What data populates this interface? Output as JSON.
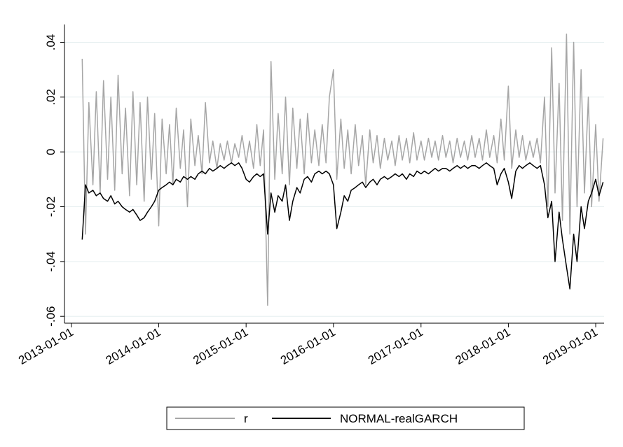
{
  "chart_data": {
    "type": "line",
    "x": [
      "2013-02-15",
      "2013-03-01",
      "2013-03-15",
      "2013-04-01",
      "2013-04-15",
      "2013-05-01",
      "2013-05-15",
      "2013-06-01",
      "2013-06-15",
      "2013-07-01",
      "2013-07-15",
      "2013-08-01",
      "2013-08-15",
      "2013-09-01",
      "2013-09-15",
      "2013-10-01",
      "2013-10-15",
      "2013-11-01",
      "2013-11-15",
      "2013-12-01",
      "2013-12-15",
      "2014-01-01",
      "2014-01-15",
      "2014-02-01",
      "2014-02-15",
      "2014-03-01",
      "2014-03-15",
      "2014-04-01",
      "2014-04-15",
      "2014-05-01",
      "2014-05-15",
      "2014-06-01",
      "2014-06-15",
      "2014-07-01",
      "2014-07-15",
      "2014-08-01",
      "2014-08-15",
      "2014-09-01",
      "2014-09-15",
      "2014-10-01",
      "2014-10-15",
      "2014-11-01",
      "2014-11-15",
      "2014-12-01",
      "2014-12-15",
      "2015-01-01",
      "2015-01-15",
      "2015-02-01",
      "2015-02-15",
      "2015-03-01",
      "2015-03-15",
      "2015-04-01",
      "2015-04-15",
      "2015-05-01",
      "2015-05-15",
      "2015-06-01",
      "2015-06-15",
      "2015-07-01",
      "2015-07-15",
      "2015-08-01",
      "2015-08-15",
      "2015-09-01",
      "2015-09-15",
      "2015-10-01",
      "2015-10-15",
      "2015-11-01",
      "2015-11-15",
      "2015-12-01",
      "2015-12-15",
      "2016-01-01",
      "2016-01-15",
      "2016-02-01",
      "2016-02-15",
      "2016-03-01",
      "2016-03-15",
      "2016-04-01",
      "2016-04-15",
      "2016-05-01",
      "2016-05-15",
      "2016-06-01",
      "2016-06-15",
      "2016-07-01",
      "2016-07-15",
      "2016-08-01",
      "2016-08-15",
      "2016-09-01",
      "2016-09-15",
      "2016-10-01",
      "2016-10-15",
      "2016-11-01",
      "2016-11-15",
      "2016-12-01",
      "2016-12-15",
      "2017-01-01",
      "2017-01-15",
      "2017-02-01",
      "2017-02-15",
      "2017-03-01",
      "2017-03-15",
      "2017-04-01",
      "2017-04-15",
      "2017-05-01",
      "2017-05-15",
      "2017-06-01",
      "2017-06-15",
      "2017-07-01",
      "2017-07-15",
      "2017-08-01",
      "2017-08-15",
      "2017-09-01",
      "2017-09-15",
      "2017-10-01",
      "2017-10-15",
      "2017-11-01",
      "2017-11-15",
      "2017-12-01",
      "2017-12-15",
      "2018-01-01",
      "2018-01-15",
      "2018-02-01",
      "2018-02-15",
      "2018-03-01",
      "2018-03-15",
      "2018-04-01",
      "2018-04-15",
      "2018-05-01",
      "2018-05-15",
      "2018-06-01",
      "2018-06-15",
      "2018-07-01",
      "2018-07-15",
      "2018-08-01",
      "2018-08-15",
      "2018-09-01",
      "2018-09-15",
      "2018-10-01",
      "2018-10-15",
      "2018-11-01",
      "2018-11-15",
      "2018-12-01",
      "2018-12-15",
      "2019-01-01",
      "2019-01-15",
      "2019-02-01"
    ],
    "series": [
      {
        "name": "r",
        "color": "#a6a6a6",
        "values": [
          0.034,
          -0.03,
          0.018,
          -0.012,
          0.022,
          -0.015,
          0.026,
          -0.01,
          0.02,
          -0.014,
          0.028,
          -0.008,
          0.016,
          -0.016,
          0.022,
          -0.012,
          0.018,
          -0.018,
          0.02,
          -0.01,
          0.014,
          -0.027,
          0.012,
          -0.008,
          0.01,
          -0.012,
          0.016,
          -0.006,
          0.008,
          -0.02,
          0.012,
          -0.005,
          0.006,
          -0.008,
          0.018,
          -0.004,
          0.004,
          -0.006,
          0.003,
          -0.003,
          0.004,
          -0.004,
          0.003,
          -0.002,
          0.006,
          -0.004,
          0.004,
          -0.006,
          0.01,
          -0.005,
          0.008,
          -0.056,
          0.033,
          -0.01,
          0.014,
          -0.008,
          0.02,
          -0.012,
          0.016,
          -0.006,
          0.012,
          -0.008,
          0.014,
          -0.004,
          0.008,
          -0.005,
          0.01,
          -0.004,
          0.02,
          0.03,
          -0.01,
          0.012,
          -0.006,
          0.008,
          -0.008,
          0.01,
          -0.005,
          0.006,
          -0.012,
          0.008,
          -0.004,
          0.006,
          -0.006,
          0.005,
          -0.003,
          0.004,
          -0.005,
          0.006,
          -0.003,
          0.005,
          -0.004,
          0.007,
          -0.003,
          0.004,
          -0.003,
          0.005,
          -0.002,
          0.004,
          -0.003,
          0.006,
          -0.002,
          0.004,
          -0.004,
          0.005,
          -0.002,
          0.004,
          -0.003,
          0.006,
          -0.002,
          0.005,
          -0.003,
          0.008,
          -0.002,
          0.006,
          -0.004,
          0.012,
          -0.003,
          0.024,
          -0.006,
          0.008,
          -0.002,
          0.006,
          -0.003,
          0.004,
          -0.002,
          0.005,
          -0.004,
          0.02,
          -0.02,
          0.038,
          -0.015,
          0.025,
          -0.025,
          0.043,
          -0.03,
          0.04,
          -0.02,
          0.03,
          -0.015,
          0.02,
          -0.02,
          0.01,
          -0.018,
          0.005
        ]
      },
      {
        "name": "NORMAL-realGARCH",
        "color": "#000000",
        "values": [
          -0.032,
          -0.012,
          -0.015,
          -0.014,
          -0.016,
          -0.015,
          -0.017,
          -0.018,
          -0.016,
          -0.019,
          -0.018,
          -0.02,
          -0.021,
          -0.022,
          -0.021,
          -0.023,
          -0.025,
          -0.024,
          -0.022,
          -0.02,
          -0.018,
          -0.014,
          -0.013,
          -0.012,
          -0.011,
          -0.012,
          -0.01,
          -0.011,
          -0.009,
          -0.01,
          -0.009,
          -0.01,
          -0.008,
          -0.007,
          -0.008,
          -0.006,
          -0.007,
          -0.006,
          -0.005,
          -0.006,
          -0.005,
          -0.004,
          -0.005,
          -0.004,
          -0.006,
          -0.01,
          -0.011,
          -0.009,
          -0.008,
          -0.009,
          -0.008,
          -0.03,
          -0.015,
          -0.022,
          -0.016,
          -0.018,
          -0.012,
          -0.025,
          -0.018,
          -0.013,
          -0.015,
          -0.01,
          -0.009,
          -0.011,
          -0.008,
          -0.007,
          -0.008,
          -0.007,
          -0.008,
          -0.012,
          -0.028,
          -0.022,
          -0.016,
          -0.018,
          -0.014,
          -0.013,
          -0.012,
          -0.011,
          -0.013,
          -0.011,
          -0.01,
          -0.012,
          -0.01,
          -0.009,
          -0.01,
          -0.009,
          -0.008,
          -0.009,
          -0.008,
          -0.01,
          -0.008,
          -0.009,
          -0.007,
          -0.008,
          -0.007,
          -0.008,
          -0.007,
          -0.006,
          -0.007,
          -0.006,
          -0.006,
          -0.007,
          -0.006,
          -0.005,
          -0.006,
          -0.005,
          -0.006,
          -0.005,
          -0.005,
          -0.006,
          -0.005,
          -0.004,
          -0.005,
          -0.006,
          -0.012,
          -0.008,
          -0.006,
          -0.011,
          -0.017,
          -0.007,
          -0.005,
          -0.006,
          -0.005,
          -0.004,
          -0.005,
          -0.006,
          -0.005,
          -0.012,
          -0.024,
          -0.018,
          -0.04,
          -0.022,
          -0.032,
          -0.042,
          -0.05,
          -0.03,
          -0.04,
          -0.02,
          -0.028,
          -0.018,
          -0.015,
          -0.01,
          -0.016,
          -0.011
        ]
      }
    ],
    "xlim": [
      "2012-12-03",
      "2019-02-05"
    ],
    "xticks": [
      "2013-01-01",
      "2014-01-01",
      "2015-01-01",
      "2016-01-01",
      "2017-01-01",
      "2018-01-01",
      "2019-01-01"
    ],
    "ylim": [
      -0.0625,
      0.0465
    ],
    "yticks": [
      {
        "value": -0.06,
        "label": "-.06"
      },
      {
        "value": -0.04,
        "label": "-.04"
      },
      {
        "value": -0.02,
        "label": "-.02"
      },
      0,
      {
        "value": 0.02,
        "label": ".02"
      },
      {
        "value": 0.04,
        "label": ".04"
      }
    ],
    "grid": true
  }
}
